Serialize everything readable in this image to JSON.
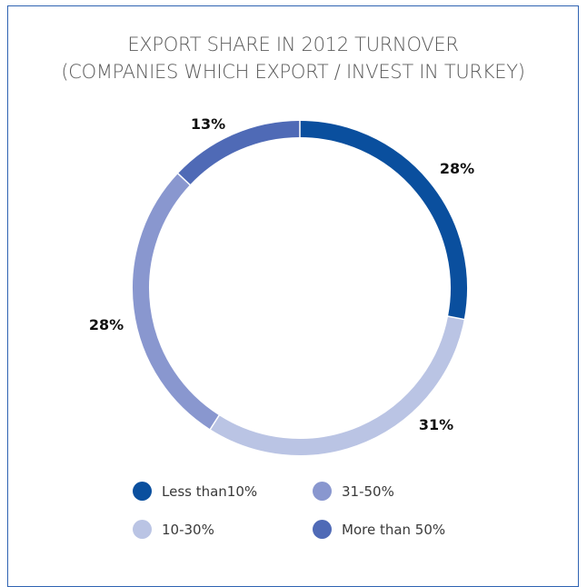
{
  "chart_data": {
    "type": "pie",
    "title_lines": [
      "EXPORT SHARE IN 2012 TURNOVER",
      "(COMPANIES WHICH EXPORT / INVEST IN TURKEY)"
    ],
    "slices": [
      {
        "name": "Less than10%",
        "value": 28,
        "label": "28%",
        "color": "#0a4f9e"
      },
      {
        "name": "10-30%",
        "value": 31,
        "label": "31%",
        "color": "#bac4e4"
      },
      {
        "name": "31-50%",
        "value": 28,
        "label": "28%",
        "color": "#8997cf"
      },
      {
        "name": "More than 50%",
        "value": 13,
        "label": "13%",
        "color": "#4f6ab6"
      }
    ],
    "legend": [
      {
        "label": "Less than10%",
        "color": "#0a4f9e"
      },
      {
        "label": "31-50%",
        "color": "#8997cf"
      },
      {
        "label": "10-30%",
        "color": "#bac4e4"
      },
      {
        "label": "More than 50%",
        "color": "#4f6ab6"
      }
    ],
    "border_color": "#2f63b2"
  }
}
